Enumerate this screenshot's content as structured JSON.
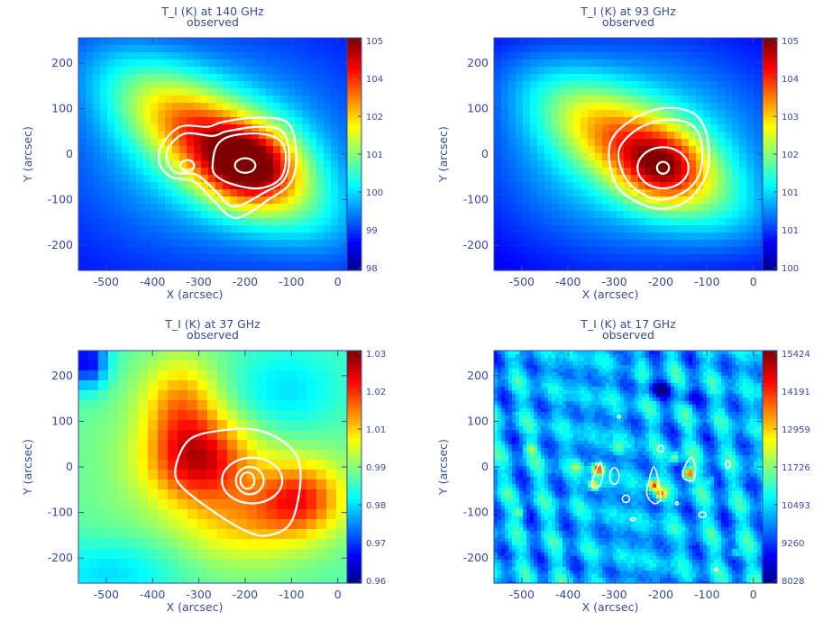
{
  "chart_data": [
    {
      "type": "heatmap",
      "title": "T_I (K) at 140 GHz",
      "subtitle": "observed",
      "xlabel": "X (arcsec)",
      "ylabel": "Y (arcsec)",
      "xlim": [
        -560,
        20
      ],
      "ylim": [
        -255,
        255
      ],
      "xticks": [
        "-500",
        "-400",
        "-300",
        "-200",
        "-100",
        "0"
      ],
      "yticks": [
        "200",
        "100",
        "0",
        "-100",
        "-200"
      ],
      "colorbar": {
        "min": 98,
        "max": 105,
        "ticks": [
          "105",
          "104",
          "102",
          "101",
          "100",
          "99",
          "98"
        ]
      },
      "peak": {
        "x": -200,
        "y": -25,
        "value": 105
      },
      "contour_levels_count": 4
    },
    {
      "type": "heatmap",
      "title": "T_I (K) at 93 GHz",
      "subtitle": "observed",
      "xlabel": "X (arcsec)",
      "ylabel": "Y (arcsec)",
      "xlim": [
        -560,
        20
      ],
      "ylim": [
        -255,
        255
      ],
      "xticks": [
        "-500",
        "-400",
        "-300",
        "-200",
        "-100",
        "0"
      ],
      "yticks": [
        "200",
        "100",
        "0",
        "-100",
        "-200"
      ],
      "colorbar": {
        "min": 100,
        "max": 105,
        "ticks": [
          "105",
          "104",
          "103",
          "102",
          "101",
          "101",
          "100"
        ]
      },
      "peak": {
        "x": -195,
        "y": -30,
        "value": 105
      },
      "contour_levels_count": 4
    },
    {
      "type": "heatmap",
      "title": "T_I (K) at 37 GHz",
      "subtitle": "observed",
      "xlabel": "X (arcsec)",
      "ylabel": "Y (arcsec)",
      "xlim": [
        -560,
        20
      ],
      "ylim": [
        -255,
        255
      ],
      "xticks": [
        "-500",
        "-400",
        "-300",
        "-200",
        "-100",
        "0"
      ],
      "yticks": [
        "200",
        "100",
        "0",
        "-100",
        "-200"
      ],
      "colorbar": {
        "min": 0.96,
        "max": 1.03,
        "ticks": [
          "1.03",
          "1.02",
          "1.01",
          "0.99",
          "0.98",
          "0.97",
          "0.96"
        ]
      },
      "peak": {
        "x": -300,
        "y": 10,
        "value": 1.03
      },
      "contour_levels_count": 3
    },
    {
      "type": "heatmap",
      "title": "T_I (K) at 17 GHz",
      "subtitle": "observed",
      "xlabel": "X (arcsec)",
      "ylabel": "Y (arcsec)",
      "xlim": [
        -560,
        20
      ],
      "ylim": [
        -255,
        255
      ],
      "xticks": [
        "-500",
        "-400",
        "-300",
        "-200",
        "-100",
        "0"
      ],
      "yticks": [
        "200",
        "100",
        "0",
        "-100",
        "-200"
      ],
      "colorbar": {
        "min": 8028,
        "max": 15424,
        "ticks": [
          "15424",
          "14191",
          "12959",
          "11726",
          "10493",
          "9260",
          "8028"
        ]
      },
      "peak": {
        "x": -140,
        "y": -20,
        "value": 15424
      },
      "contour_levels_count": 1
    }
  ]
}
